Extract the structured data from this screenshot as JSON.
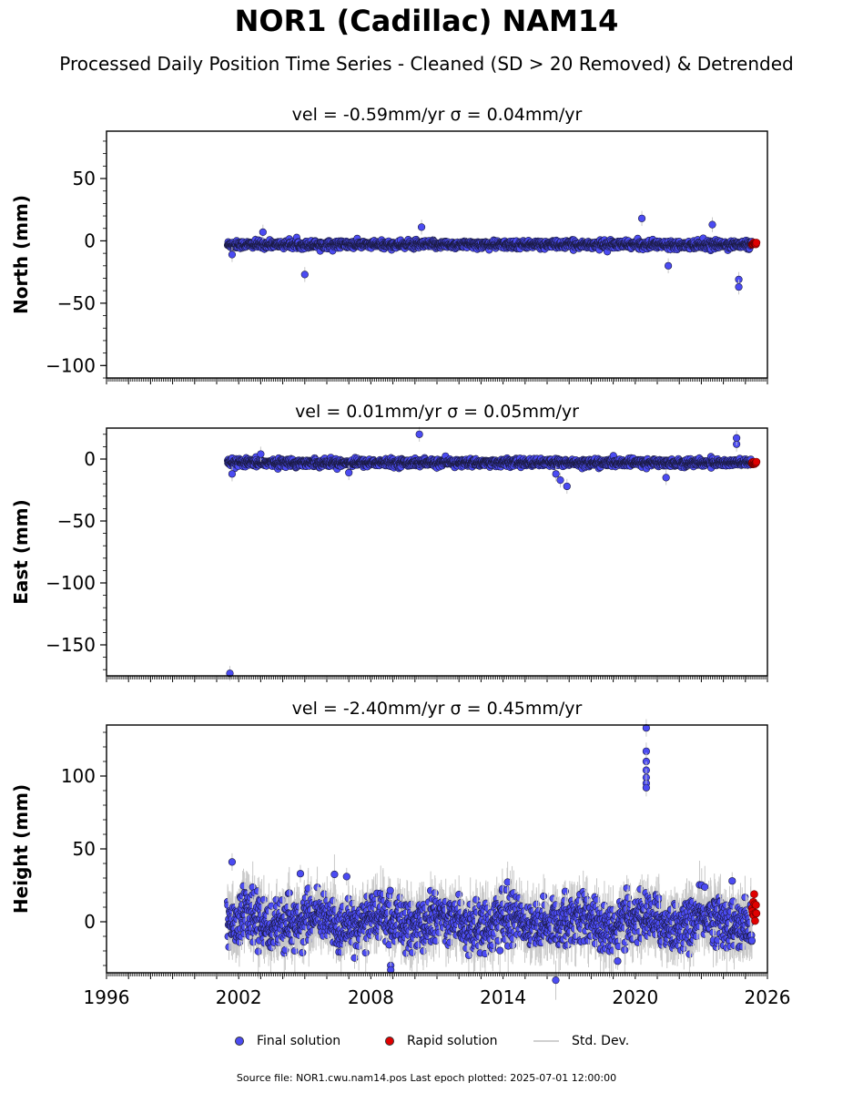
{
  "title": "NOR1 (Cadillac) NAM14",
  "subtitle": "Processed Daily Position Time Series - Cleaned (SD > 20 Removed) & Detrended",
  "chart_data": [
    {
      "type": "scatter",
      "panel_title": "vel = -0.59mm/yr   σ = 0.04mm/yr",
      "ylabel": "North (mm)",
      "ylim": [
        -110,
        88
      ],
      "yticks": [
        -100,
        -50,
        0,
        50
      ],
      "xlim": [
        1996,
        2026
      ],
      "baseline": -3,
      "noise": 1.5,
      "outliers": [
        [
          2001.7,
          -11
        ],
        [
          2003.1,
          7
        ],
        [
          2005.0,
          -27
        ],
        [
          2010.3,
          11
        ],
        [
          2020.3,
          18
        ],
        [
          2021.5,
          -20
        ],
        [
          2023.5,
          13
        ],
        [
          2024.7,
          -31
        ],
        [
          2024.7,
          -37
        ]
      ],
      "series": [
        {
          "name": "Final solution",
          "x_range": [
            2001.5,
            2025.3
          ]
        },
        {
          "name": "Rapid solution",
          "x_range": [
            2025.3,
            2025.5
          ]
        }
      ]
    },
    {
      "type": "scatter",
      "panel_title": "vel = 0.01mm/yr   σ = 0.05mm/yr",
      "ylabel": "East (mm)",
      "ylim": [
        -175,
        25
      ],
      "yticks": [
        -150,
        -100,
        -50,
        0
      ],
      "xlim": [
        1996,
        2026
      ],
      "baseline": -3,
      "noise": 1.5,
      "outliers": [
        [
          2001.6,
          -173
        ],
        [
          2001.7,
          -12
        ],
        [
          2003.0,
          4
        ],
        [
          2007.0,
          -11
        ],
        [
          2010.2,
          20
        ],
        [
          2016.4,
          -12
        ],
        [
          2016.6,
          -17
        ],
        [
          2016.9,
          -22
        ],
        [
          2021.4,
          -15
        ],
        [
          2024.6,
          12
        ],
        [
          2024.6,
          17
        ]
      ],
      "series": [
        {
          "name": "Final solution",
          "x_range": [
            2001.5,
            2025.3
          ]
        },
        {
          "name": "Rapid solution",
          "x_range": [
            2025.3,
            2025.5
          ]
        }
      ]
    },
    {
      "type": "scatter",
      "panel_title": "vel = -2.40mm/yr   σ = 0.45mm/yr",
      "ylabel": "Height (mm)",
      "ylim": [
        -35,
        135
      ],
      "yticks": [
        0,
        50,
        100
      ],
      "xlim": [
        1996,
        2026
      ],
      "xticks": [
        1996,
        2002,
        2008,
        2014,
        2020,
        2026
      ],
      "baseline": 0,
      "noise": 8,
      "outliers": [
        [
          2001.7,
          41
        ],
        [
          2004.8,
          33
        ],
        [
          2006.9,
          31
        ],
        [
          2008.9,
          -30
        ],
        [
          2008.9,
          -33
        ],
        [
          2019.2,
          -27
        ],
        [
          2020.5,
          133
        ],
        [
          2020.5,
          117
        ],
        [
          2020.5,
          110
        ],
        [
          2020.5,
          104
        ],
        [
          2020.5,
          99
        ],
        [
          2020.5,
          95
        ],
        [
          2020.5,
          92
        ],
        [
          2024.4,
          28
        ]
      ],
      "series": [
        {
          "name": "Final solution",
          "x_range": [
            2001.5,
            2025.3
          ]
        },
        {
          "name": "Rapid solution",
          "x_range": [
            2025.3,
            2025.5
          ]
        }
      ]
    }
  ],
  "legend": {
    "final": "Final solution",
    "rapid": "Rapid solution",
    "std": "Std. Dev."
  },
  "colors": {
    "final": "#4b4bf2",
    "rapid": "#e00000",
    "std": "#c8c8c8",
    "edge": "#1a1a40"
  },
  "source": "Source file: NOR1.cwu.nam14.pos  Last epoch plotted: 2025-07-01 12:00:00"
}
